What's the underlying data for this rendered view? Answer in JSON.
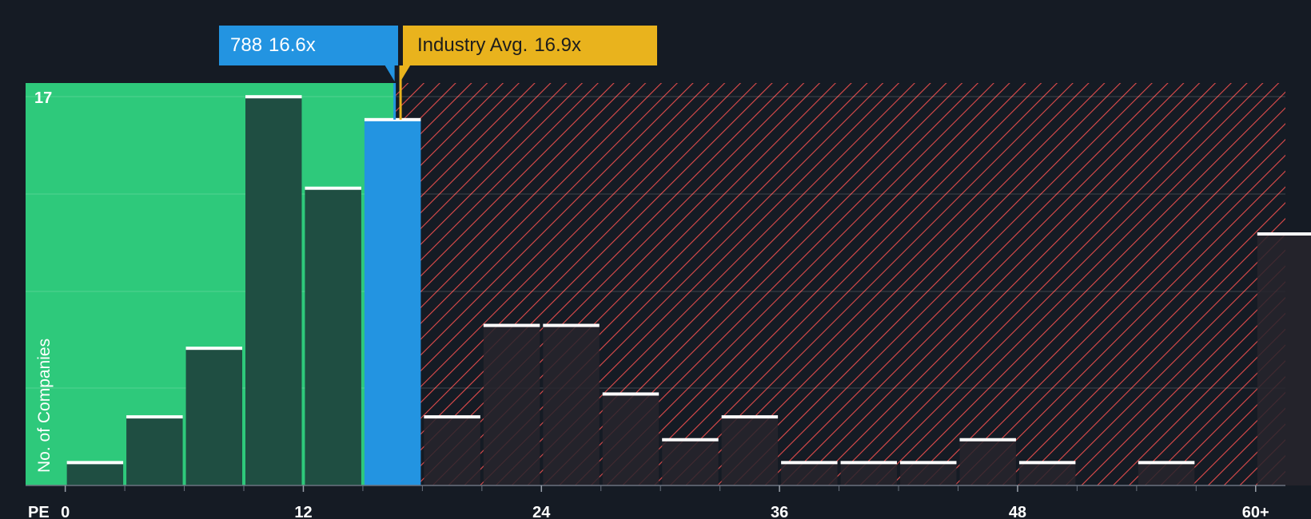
{
  "company_label": {
    "ticker": "788",
    "value": "16.6x"
  },
  "industry_label": {
    "text": "Industry Avg.",
    "value": "16.9x"
  },
  "colors": {
    "background": "#151b24",
    "below_avg_zone": "#2ec97b",
    "above_avg_zone_hatch": "#e24c4c",
    "bar_below": "#1f4e42",
    "bar_above": "#27242d",
    "company_bar": "#2394e1",
    "industry_line": "#e9b31d",
    "bar_cap": "#ffffff"
  },
  "chart_data": {
    "type": "bar",
    "title": "",
    "xlabel": "PE",
    "ylabel": "No. of Companies",
    "x_ticks": [
      "0",
      "12",
      "24",
      "36",
      "48",
      "60+"
    ],
    "x_tick_values": [
      0,
      12,
      24,
      36,
      48,
      60
    ],
    "xlim": [
      -2,
      61.5
    ],
    "bin_width": 3,
    "y_max_label": "17",
    "ylim": [
      0,
      17.6
    ],
    "company_pe": 16.6,
    "industry_avg_pe": 16.9,
    "bins": [
      {
        "start": 0,
        "value": 1
      },
      {
        "start": 3,
        "value": 3
      },
      {
        "start": 6,
        "value": 6
      },
      {
        "start": 9,
        "value": 17
      },
      {
        "start": 12,
        "value": 13
      },
      {
        "start": 15,
        "value": 16,
        "company": true
      },
      {
        "start": 18,
        "value": 3
      },
      {
        "start": 21,
        "value": 7
      },
      {
        "start": 24,
        "value": 7
      },
      {
        "start": 27,
        "value": 4
      },
      {
        "start": 30,
        "value": 2
      },
      {
        "start": 33,
        "value": 3
      },
      {
        "start": 36,
        "value": 1
      },
      {
        "start": 39,
        "value": 1
      },
      {
        "start": 42,
        "value": 1
      },
      {
        "start": 45,
        "value": 2
      },
      {
        "start": 48,
        "value": 1
      },
      {
        "start": 51,
        "value": 0
      },
      {
        "start": 54,
        "value": 1
      },
      {
        "start": 57,
        "value": 0
      },
      {
        "start": 60,
        "value": 11
      }
    ]
  }
}
